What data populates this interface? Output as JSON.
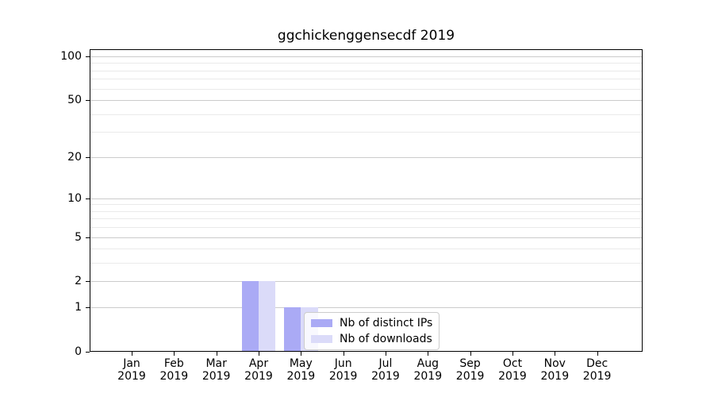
{
  "chart_data": {
    "type": "bar",
    "title": "ggchickenggensecdf 2019",
    "x": {
      "categories": [
        "Jan",
        "Feb",
        "Mar",
        "Apr",
        "May",
        "Jun",
        "Jul",
        "Aug",
        "Sep",
        "Oct",
        "Nov",
        "Dec"
      ],
      "year_label": "2019"
    },
    "series": [
      {
        "name": "Nb of distinct IPs",
        "key": "distinct-ips",
        "color": "#aaaaf5",
        "values": [
          0,
          0,
          0,
          2,
          1,
          0,
          0,
          0,
          0,
          0,
          0,
          0
        ]
      },
      {
        "name": "Nb of downloads",
        "key": "downloads",
        "color": "#dbdbf9",
        "values": [
          0,
          0,
          0,
          2,
          1,
          0,
          0,
          0,
          0,
          0,
          0,
          0
        ]
      }
    ],
    "yscale": "log10(1+x)",
    "ylim": [
      0,
      113
    ],
    "y_major_ticks": [
      0,
      1,
      2,
      5,
      10,
      20,
      50,
      100
    ],
    "y_minor_ticks": [
      3,
      4,
      6,
      7,
      8,
      9,
      30,
      40,
      60,
      70,
      80,
      90
    ],
    "grid": "horizontal, major and minor, on",
    "legend_position": "inside axes, lower center"
  },
  "colors": {
    "background": "#ffffff",
    "spine": "#000000",
    "grid_major": "#cbcbcb",
    "grid_minor": "#eaeaea",
    "bar_distinct_ips": "#aaaaf5",
    "bar_downloads": "#dbdbf9",
    "legend_border": "#cccccc",
    "text": "#000000"
  }
}
